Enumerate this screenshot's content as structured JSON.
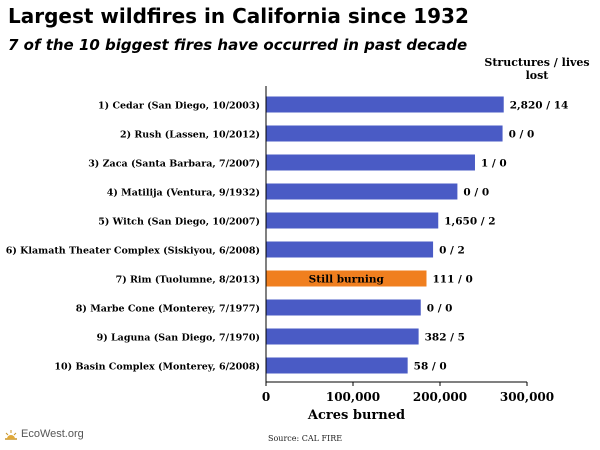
{
  "title": "Largest wildfires in California since 1932",
  "subtitle": "7 of the 10 biggest fires have occurred in past decade",
  "side_header": "Structures / lives lost",
  "source": "Source: CAL FIRE",
  "logo_text": "EcoWest.org",
  "colors": {
    "bar": "#4a5bc5",
    "highlight": "#f07f1f",
    "axis": "#000000"
  },
  "chart_data": {
    "type": "bar",
    "orientation": "horizontal",
    "categories": [
      "1) Cedar (San Diego, 10/2003)",
      "2) Rush (Lassen, 10/2012)",
      "3) Zaca (Santa Barbara, 7/2007)",
      "4) Matilija (Ventura, 9/1932)",
      "5) Witch (San Diego, 10/2007)",
      "6) Klamath Theater Complex (Siskiyou, 6/2008)",
      "7) Rim (Tuolumne, 8/2013)",
      "8) Marbe Cone (Monterey, 7/1977)",
      "9) Laguna (San Diego, 7/1970)",
      "10) Basin Complex (Monterey, 6/2008)"
    ],
    "values": [
      273246,
      271911,
      240207,
      220000,
      197990,
      192038,
      184481,
      177866,
      175425,
      162818
    ],
    "data_labels": [
      "2,820 / 14",
      "0 / 0",
      "1 / 0",
      "0 / 0",
      "1,650 / 2",
      "0 / 2",
      "111 / 0",
      "0 / 0",
      "382 / 5",
      "58 / 0"
    ],
    "highlight_index": 6,
    "highlight_label": "Still burning",
    "xlabel": "Acres burned",
    "xlim": [
      0,
      300000
    ],
    "xticks": [
      0,
      100000,
      200000,
      300000
    ],
    "xtick_labels": [
      "0",
      "100,000",
      "200,000",
      "300,000"
    ],
    "grid": false
  }
}
